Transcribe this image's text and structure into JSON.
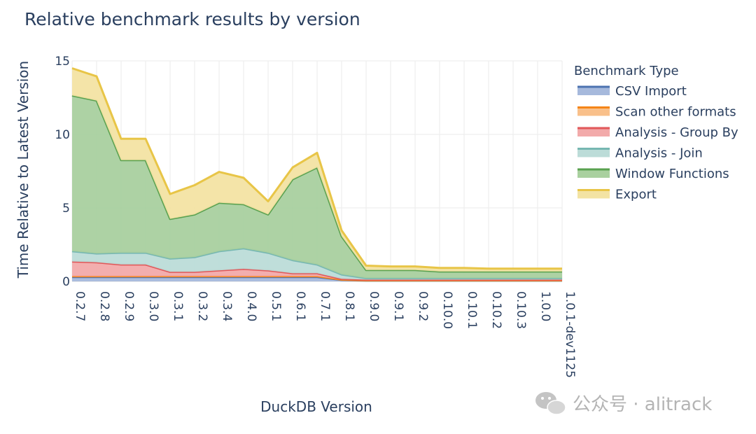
{
  "chart_data": {
    "type": "area",
    "title": "Relative benchmark results by version",
    "xlabel": "DuckDB Version",
    "ylabel": "Time Relative to Latest Version",
    "ylim": [
      0,
      15
    ],
    "yticks": [
      0,
      5,
      10,
      15
    ],
    "grid": true,
    "legend_title": "Benchmark Type",
    "legend_position": "right",
    "categories": [
      "0.2.7",
      "0.2.8",
      "0.2.9",
      "0.3.0",
      "0.3.1",
      "0.3.2",
      "0.3.4",
      "0.4.0",
      "0.5.1",
      "0.6.1",
      "0.7.1",
      "0.8.1",
      "0.9.0",
      "0.9.1",
      "0.9.2",
      "0.10.0",
      "0.10.1",
      "0.10.2",
      "0.10.3",
      "1.0.0",
      "1.0.1-dev1125"
    ],
    "series": [
      {
        "name": "CSV Import",
        "color": "#4c72b0",
        "fill": "#a6b9dc",
        "values": [
          0.3,
          0.3,
          0.3,
          0.3,
          0.3,
          0.3,
          0.3,
          0.3,
          0.3,
          0.3,
          0.3,
          0.1,
          0.05,
          0.05,
          0.05,
          0.05,
          0.05,
          0.05,
          0.05,
          0.05,
          0.05
        ]
      },
      {
        "name": "Scan other formats",
        "color": "#f58518",
        "fill": "#f9c08a",
        "values": [
          0.05,
          0.05,
          0.05,
          0.05,
          0.05,
          0.05,
          0.05,
          0.05,
          0.05,
          0.05,
          0.05,
          0.02,
          0.02,
          0.02,
          0.02,
          0.02,
          0.02,
          0.02,
          0.02,
          0.02,
          0.02
        ]
      },
      {
        "name": "Analysis - Group By",
        "color": "#e15759",
        "fill": "#f2aaaa",
        "values": [
          1.0,
          0.95,
          0.8,
          0.8,
          0.3,
          0.3,
          0.4,
          0.5,
          0.4,
          0.2,
          0.2,
          0.05,
          0.05,
          0.05,
          0.05,
          0.05,
          0.05,
          0.05,
          0.05,
          0.05,
          0.05
        ]
      },
      {
        "name": "Analysis - Join",
        "color": "#76b7b2",
        "fill": "#bcdcd8",
        "values": [
          0.7,
          0.6,
          0.8,
          0.8,
          0.9,
          1.0,
          1.3,
          1.4,
          1.2,
          0.9,
          0.6,
          0.3,
          0.1,
          0.1,
          0.1,
          0.1,
          0.1,
          0.1,
          0.1,
          0.1,
          0.1
        ]
      },
      {
        "name": "Window Functions",
        "color": "#59a14f",
        "fill": "#a9d09f",
        "values": [
          10.6,
          10.4,
          6.3,
          6.3,
          2.7,
          2.9,
          3.3,
          3.0,
          2.6,
          5.5,
          6.6,
          2.6,
          0.55,
          0.55,
          0.55,
          0.45,
          0.45,
          0.45,
          0.45,
          0.45,
          0.45
        ]
      },
      {
        "name": "Export",
        "color": "#e8c547",
        "fill": "#f3e3a3",
        "values": [
          1.85,
          1.65,
          1.45,
          1.45,
          1.7,
          2.0,
          2.1,
          1.8,
          0.9,
          0.8,
          1.0,
          0.4,
          0.3,
          0.25,
          0.25,
          0.25,
          0.25,
          0.2,
          0.2,
          0.2,
          0.2
        ]
      }
    ]
  },
  "watermark": {
    "icon": "wechat-icon",
    "text": "公众号 · alitrack"
  }
}
